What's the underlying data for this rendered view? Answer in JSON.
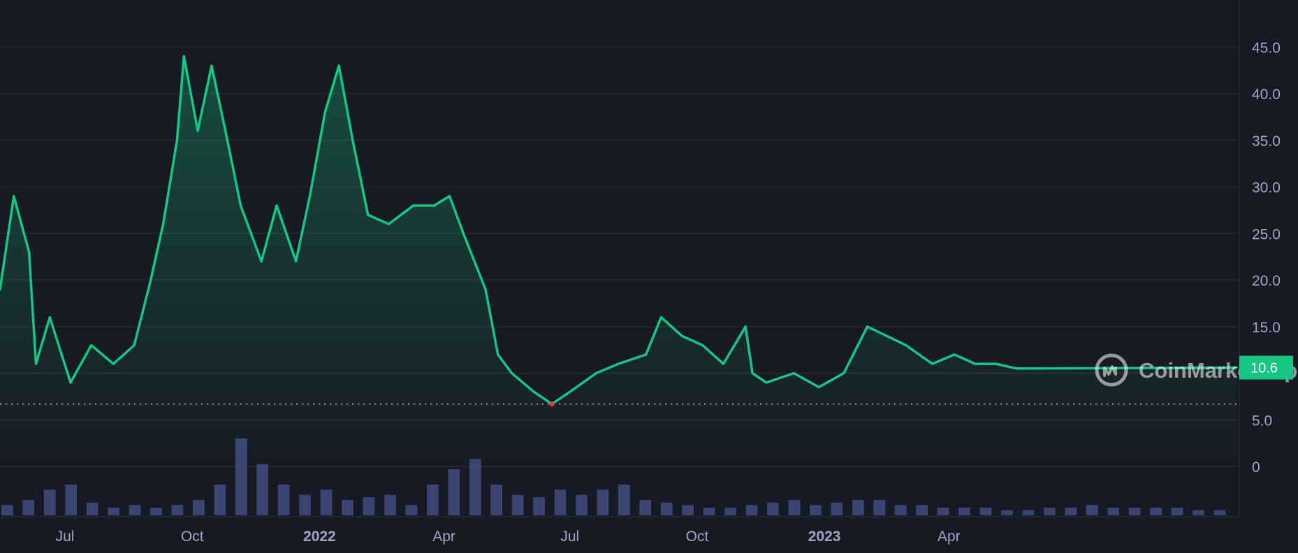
{
  "watermark": "CoinMarketCap",
  "colors": {
    "background": "#171924",
    "line": "#16c784",
    "volume": "#3b4572",
    "grid": "#262a38",
    "axis_text": "#a1a7bb",
    "low_marker": "#ea3943"
  },
  "current_price_label": "10.6",
  "chart_data": [
    {
      "type": "area",
      "y_ticks": [
        "0",
        "5.0",
        "10.0",
        "15.0",
        "20.0",
        "25.0",
        "30.0",
        "35.0",
        "40.0",
        "45.0"
      ],
      "ylim": [
        0,
        45
      ],
      "x_ticks": [
        {
          "label": "Jul",
          "bold": false
        },
        {
          "label": "Oct",
          "bold": false
        },
        {
          "label": "2022",
          "bold": true
        },
        {
          "label": "Apr",
          "bold": false
        },
        {
          "label": "Jul",
          "bold": false
        },
        {
          "label": "Oct",
          "bold": false
        },
        {
          "label": "2023",
          "bold": true
        },
        {
          "label": "Apr",
          "bold": false
        }
      ],
      "x": [
        "2021-05-15",
        "2021-05-25",
        "2021-06-05",
        "2021-06-10",
        "2021-06-20",
        "2021-07-05",
        "2021-07-20",
        "2021-08-05",
        "2021-08-20",
        "2021-09-01",
        "2021-09-10",
        "2021-09-20",
        "2021-09-25",
        "2021-10-05",
        "2021-10-15",
        "2021-10-25",
        "2021-11-05",
        "2021-11-20",
        "2021-12-01",
        "2021-12-15",
        "2021-12-25",
        "2022-01-05",
        "2022-01-15",
        "2022-01-25",
        "2022-02-05",
        "2022-02-20",
        "2022-03-10",
        "2022-03-25",
        "2022-04-05",
        "2022-04-15",
        "2022-05-01",
        "2022-05-10",
        "2022-05-20",
        "2022-06-05",
        "2022-06-18",
        "2022-07-01",
        "2022-07-20",
        "2022-08-05",
        "2022-08-25",
        "2022-09-05",
        "2022-09-20",
        "2022-10-05",
        "2022-10-20",
        "2022-11-05",
        "2022-11-10",
        "2022-11-20",
        "2022-12-10",
        "2022-12-28",
        "2023-01-15",
        "2023-02-01",
        "2023-02-15",
        "2023-03-01",
        "2023-03-20",
        "2023-04-05",
        "2023-04-20",
        "2023-05-05",
        "2023-05-20",
        "2023-06-01"
      ],
      "series": [
        {
          "values": [
            19,
            29,
            23,
            11,
            16,
            9,
            13,
            11,
            13,
            20,
            26,
            35,
            44,
            36,
            43,
            36,
            28,
            22,
            28,
            22,
            29,
            38,
            43,
            35,
            27,
            26,
            28,
            28,
            29,
            25,
            19,
            12,
            10,
            8,
            6.7,
            8,
            10,
            11,
            12,
            16,
            14,
            13,
            11,
            15,
            10,
            9,
            10,
            8.5,
            10,
            15,
            14,
            13,
            11,
            12,
            11,
            11,
            10.5,
            10.6
          ]
        }
      ],
      "volume": [
        4,
        6,
        10,
        12,
        5,
        3,
        4,
        3,
        4,
        6,
        12,
        30,
        20,
        12,
        8,
        10,
        6,
        7,
        8,
        4,
        12,
        18,
        22,
        12,
        8,
        7,
        10,
        8,
        10,
        12,
        6,
        5,
        4,
        3,
        3,
        4,
        5,
        6,
        4,
        5,
        6,
        6,
        4,
        4,
        3,
        3,
        3,
        2,
        2,
        3,
        3,
        4,
        3,
        3,
        3,
        3,
        2,
        2
      ],
      "current_value": 10.6,
      "all_time_low": 6.7
    }
  ]
}
